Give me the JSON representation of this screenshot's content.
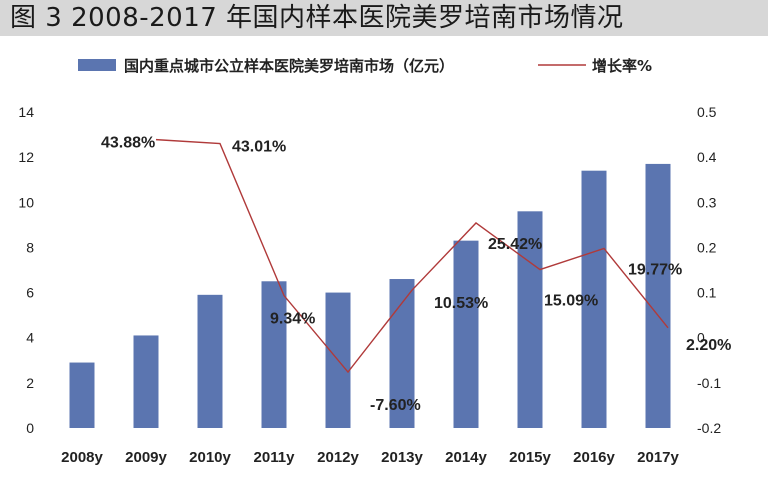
{
  "page": {
    "title": "图 3  2008-2017 年国内样本医院美罗培南市场情况"
  },
  "chart_data": {
    "type": "bar",
    "categories": [
      "2008y",
      "2009y",
      "2010y",
      "2011y",
      "2012y",
      "2013y",
      "2014y",
      "2015y",
      "2016y",
      "2017y"
    ],
    "series": [
      {
        "name": "国内重点城市公立样本医院美罗培南市场（亿元）",
        "type": "bar",
        "axis": "left",
        "color": "#5b75b0",
        "values": [
          2.9,
          4.1,
          5.9,
          6.5,
          6.0,
          6.6,
          8.3,
          9.6,
          11.4,
          11.7
        ]
      },
      {
        "name": "增长率%",
        "type": "line",
        "axis": "right",
        "color": "#b03a3a",
        "values": [
          null,
          0.4388,
          0.4301,
          0.0934,
          -0.076,
          0.1053,
          0.2542,
          0.1509,
          0.1977,
          0.022
        ],
        "labels": [
          "",
          "43.88%",
          "43.01%",
          "9.34%",
          "-7.60%",
          "10.53%",
          "25.42%",
          "15.09%",
          "19.77%",
          "2.20%"
        ]
      }
    ],
    "y_left": {
      "ticks": [
        "0",
        "2",
        "4",
        "6",
        "8",
        "10",
        "12",
        "14"
      ],
      "ylim": [
        0,
        14
      ]
    },
    "y_right": {
      "ticks": [
        "-0.2",
        "-0.1",
        "0",
        "0.1",
        "0.2",
        "0.3",
        "0.4",
        "0.5"
      ],
      "ylim": [
        -0.2,
        0.5
      ]
    },
    "legend_position": "top",
    "grid": false
  }
}
